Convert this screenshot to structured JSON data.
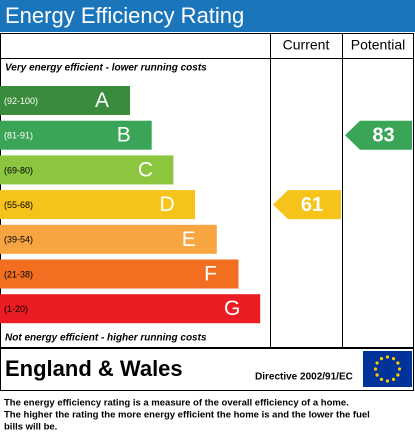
{
  "header": {
    "title": "Energy Efficiency Rating"
  },
  "columns": [
    "Current",
    "Potential"
  ],
  "top_note": "Very energy efficient - lower running costs",
  "bottom_note": "Not energy efficient - higher running costs",
  "bands": [
    {
      "range": "(92-100)",
      "letter": "A",
      "color": "#3a8b3c"
    },
    {
      "range": "(81-91)",
      "letter": "B",
      "color": "#3aa557"
    },
    {
      "range": "(69-80)",
      "letter": "C",
      "color": "#8cc63f"
    },
    {
      "range": "(55-68)",
      "letter": "D",
      "color": "#f6c31a"
    },
    {
      "range": "(39-54)",
      "letter": "E",
      "color": "#f7a541"
    },
    {
      "range": "(21-38)",
      "letter": "F",
      "color": "#f26f21"
    },
    {
      "range": "(1-20)",
      "letter": "G",
      "color": "#ec1c24"
    }
  ],
  "ratings": [
    {
      "value": 61
    },
    {
      "value": 83
    }
  ],
  "footer": {
    "region": "England & Wales",
    "directive": "Directive 2002/91/EC",
    "description": [
      "The energy efficiency rating is a measure of the overall efficiency of a home.",
      "The higher the rating the more energy efficient the home is and the lower the fuel",
      "bills will be."
    ]
  }
}
